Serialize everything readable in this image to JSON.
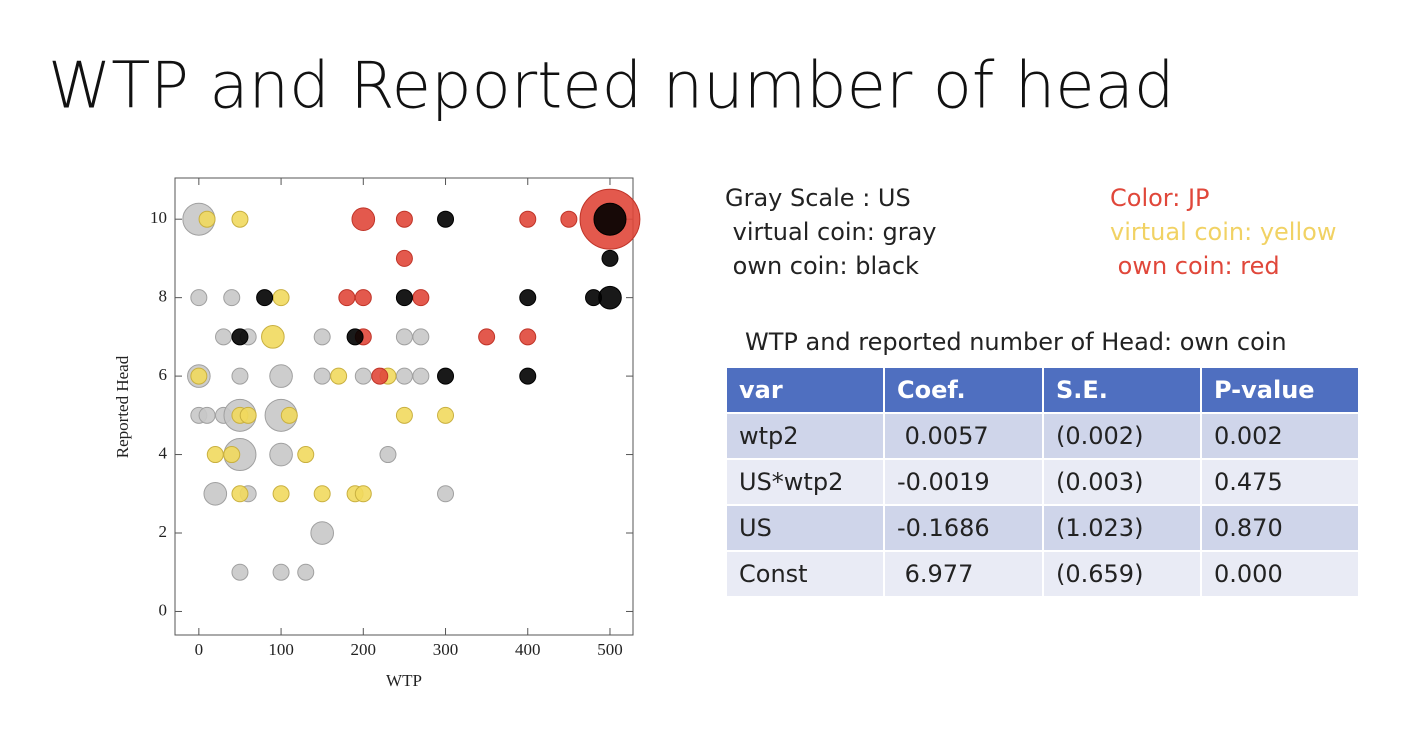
{
  "title": "WTP and Reported number of head",
  "chart_data": {
    "type": "bubble",
    "xlabel": "WTP",
    "ylabel": "Reported Head",
    "xlim": [
      -29,
      528
    ],
    "ylim": [
      -0.6,
      11.05
    ],
    "xticks": [
      0,
      100,
      200,
      300,
      400,
      500
    ],
    "yticks": [
      0,
      2,
      4,
      6,
      8,
      10
    ],
    "series": [
      {
        "color": "#c8c8c8",
        "stroke": "#a0a0a0",
        "x": [
          0,
          0,
          40,
          30,
          60,
          150,
          250,
          270,
          0,
          50,
          100,
          150,
          200,
          250,
          270,
          0,
          10,
          30,
          50,
          100,
          50,
          100,
          230,
          20,
          60,
          300,
          150,
          50,
          100,
          130
        ],
        "values": [
          10,
          8,
          8,
          7,
          7,
          7,
          7,
          7,
          6,
          6,
          6,
          6,
          6,
          6,
          6,
          5,
          5,
          5,
          5,
          5,
          4,
          4,
          4,
          3,
          3,
          3,
          2,
          1,
          1,
          1
        ],
        "sizes": [
          4,
          1,
          1,
          1,
          1,
          1,
          1,
          1,
          2,
          1,
          2,
          1,
          1,
          1,
          1,
          1,
          1,
          1,
          4,
          4,
          4,
          2,
          1,
          2,
          1,
          1,
          2,
          1,
          1,
          1
        ]
      },
      {
        "color": "#f1d95e",
        "stroke": "#c9b040",
        "x": [
          10,
          50,
          100,
          90,
          0,
          170,
          230,
          50,
          60,
          110,
          250,
          300,
          20,
          40,
          130,
          50,
          100,
          150,
          190,
          200
        ],
        "values": [
          10,
          10,
          8,
          7,
          6,
          6,
          6,
          5,
          5,
          5,
          5,
          5,
          4,
          4,
          4,
          3,
          3,
          3,
          3,
          3
        ],
        "sizes": [
          1,
          1,
          1,
          2,
          1,
          1,
          1,
          1,
          1,
          1,
          1,
          1,
          1,
          1,
          1,
          1,
          1,
          1,
          1,
          1
        ]
      },
      {
        "color": "#e0473a",
        "stroke": "#c03428",
        "x": [
          200,
          250,
          400,
          450,
          500,
          250,
          180,
          200,
          270,
          200,
          350,
          400,
          220
        ],
        "values": [
          10,
          10,
          10,
          10,
          10,
          9,
          8,
          8,
          8,
          7,
          7,
          7,
          6
        ],
        "sizes": [
          2,
          1,
          1,
          1,
          14,
          1,
          1,
          1,
          1,
          1,
          1,
          1,
          1
        ]
      },
      {
        "color": "#000000",
        "stroke": "#000000",
        "x": [
          300,
          500,
          500,
          80,
          250,
          400,
          480,
          500,
          50,
          190,
          300,
          400
        ],
        "values": [
          10,
          10,
          9,
          8,
          8,
          8,
          8,
          8,
          7,
          7,
          6,
          6
        ],
        "sizes": [
          1,
          4,
          1,
          1,
          1,
          1,
          1,
          2,
          1,
          1,
          1,
          1
        ]
      }
    ]
  },
  "legend": {
    "us": [
      {
        "text": "Gray Scale : US",
        "color": "#222222"
      },
      {
        "text": " virtual coin: gray",
        "color": "#222222"
      },
      {
        "text": " own coin: black",
        "color": "#222222"
      }
    ],
    "jp": [
      {
        "text": "Color: JP",
        "color": "#e0473a"
      },
      {
        "text": "virtual coin: yellow",
        "color": "#f1d264"
      },
      {
        "text": " own coin: red",
        "color": "#e0473a"
      }
    ]
  },
  "table": {
    "title": "WTP and reported number of Head: own coin",
    "header": [
      "var",
      "Coef.",
      "S.E.",
      "P-value"
    ],
    "rows": [
      [
        "wtp2",
        " 0.0057",
        "(0.002)",
        "0.002"
      ],
      [
        "US*wtp2",
        "-0.0019",
        "(0.003)",
        "0.475"
      ],
      [
        "US",
        "-0.1686",
        "(1.023)",
        "0.870"
      ],
      [
        "Const",
        " 6.977",
        "(0.659)",
        "0.000"
      ]
    ]
  }
}
